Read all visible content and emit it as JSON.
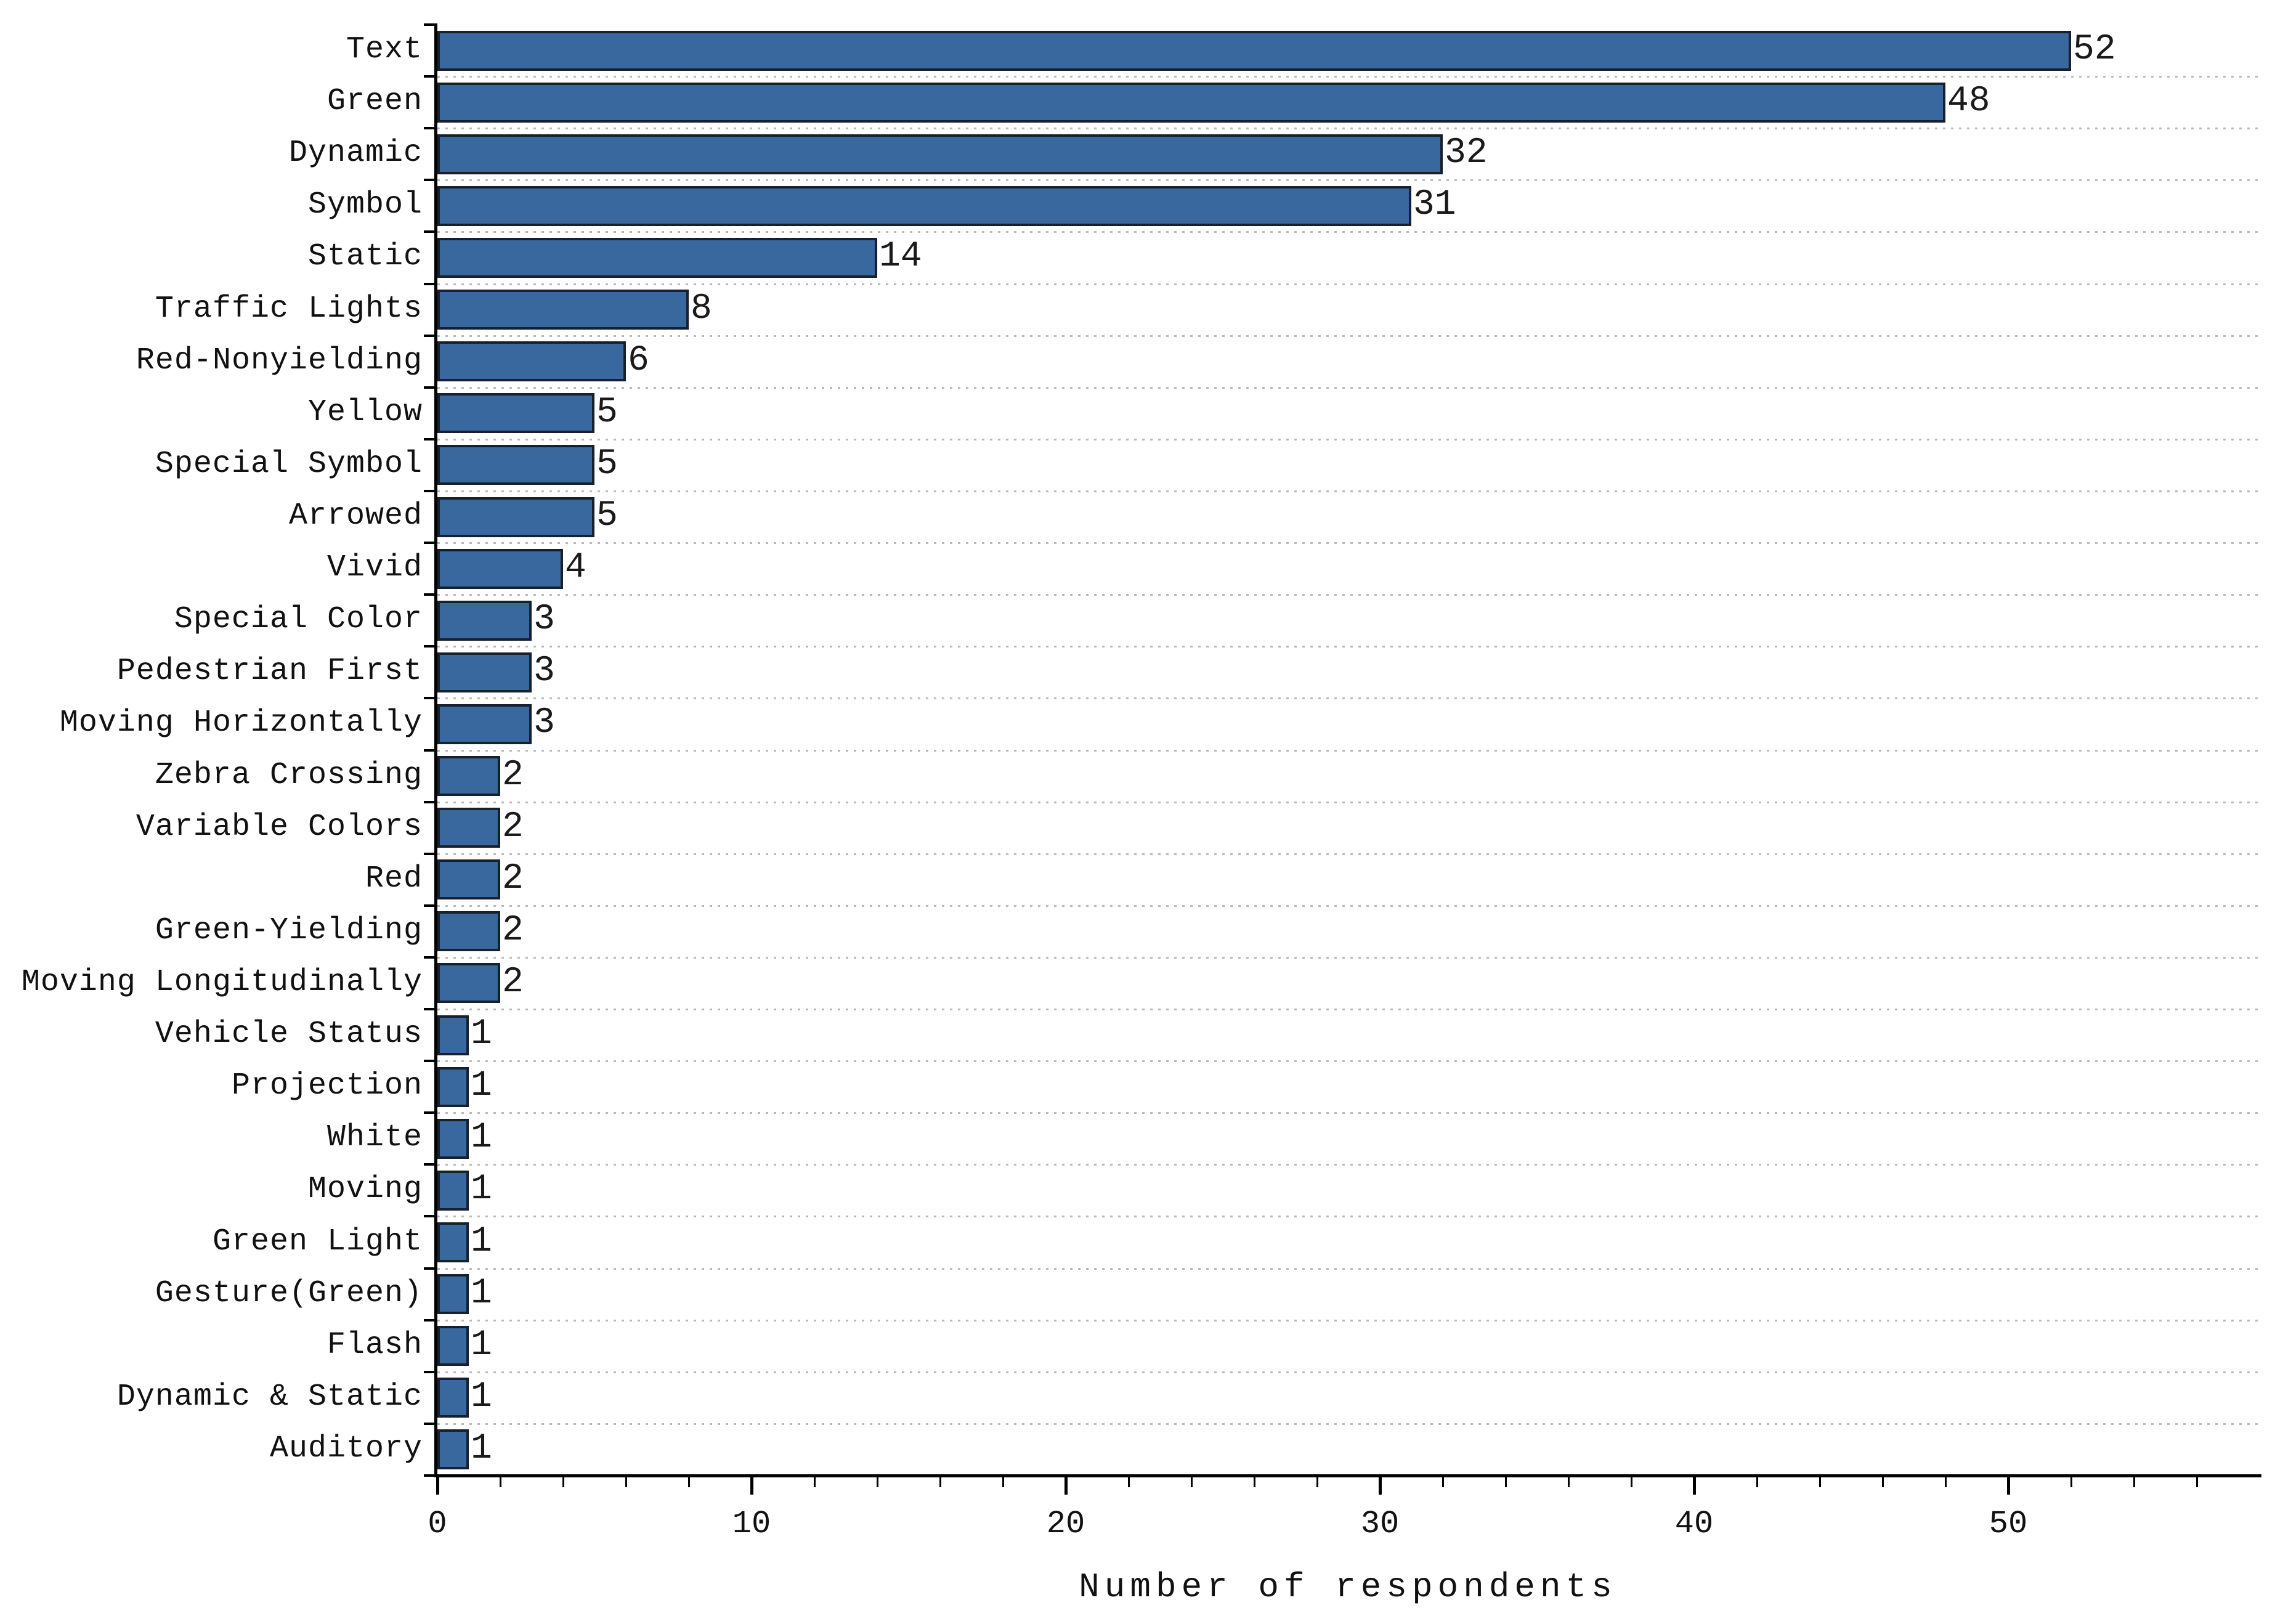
{
  "chart_data": {
    "type": "bar",
    "orientation": "horizontal",
    "title": "",
    "xlabel": "Number of respondents",
    "ylabel": "",
    "categories": [
      "Text",
      "Green",
      "Dynamic",
      "Symbol",
      "Static",
      "Traffic Lights",
      "Red-Nonyielding",
      "Yellow",
      "Special Symbol",
      "Arrowed",
      "Vivid",
      "Special Color",
      "Pedestrian First",
      "Moving Horizontally",
      "Zebra Crossing",
      "Variable Colors",
      "Red",
      "Green-Yielding",
      "Moving Longitudinally",
      "Vehicle Status",
      "Projection",
      "White",
      "Moving",
      "Green Light",
      "Gesture(Green)",
      "Flash",
      "Dynamic & Static",
      "Auditory"
    ],
    "values": [
      52,
      48,
      32,
      31,
      14,
      8,
      6,
      5,
      5,
      5,
      4,
      3,
      3,
      3,
      2,
      2,
      2,
      2,
      2,
      1,
      1,
      1,
      1,
      1,
      1,
      1,
      1,
      1
    ],
    "value_labels": [
      "52",
      "48",
      "32",
      "31",
      "14",
      "8",
      "6",
      "5",
      "5",
      "5",
      "4",
      "3",
      "3",
      "3",
      "2",
      "2",
      "2",
      "2",
      "2",
      "1",
      "1",
      "1",
      "1",
      "1",
      "1",
      "1",
      "1",
      "1"
    ],
    "xticks": [
      0,
      10,
      20,
      30,
      40,
      50
    ],
    "xtick_labels": [
      "0",
      "10",
      "20",
      "30",
      "40",
      "50"
    ],
    "x_minor_step": 2,
    "xlim": [
      0,
      58
    ],
    "grid": "dotted horizontal at category boundaries",
    "legend": "none",
    "bar_color": "#38689e",
    "bar_edge_color": "#17212e",
    "gridline_color": "#b9b9b9",
    "axis_color": "#000000",
    "text_color": "#111111"
  }
}
